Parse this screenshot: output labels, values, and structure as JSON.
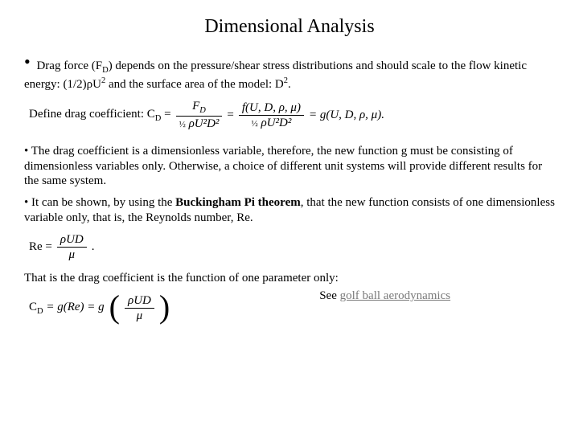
{
  "title": "Dimensional Analysis",
  "bullet1_a": "Drag force (F",
  "bullet1_sub": "D",
  "bullet1_b": ") depends on the pressure/shear stress distributions and should scale to the flow kinetic energy: (1/2)ρU",
  "bullet1_sup1": "2",
  "bullet1_c": " and the surface area of the model: D",
  "bullet1_sup2": "2",
  "bullet1_d": ".",
  "eq1_def_pre": "Define drag coefficient: C",
  "eq1_def_sub": "D",
  "equals": " = ",
  "eq1_num1": "F",
  "eq1_num1_sub": "D",
  "eq1_den_half": "½",
  "eq1_den_rest": " ρU²D²",
  "eq1_num2_f": "f(U, D, ρ, μ)",
  "eq1_num3_g": " = g(U, D, ρ, μ).",
  "bullet2": "The drag coefficient is a dimensionless variable, therefore, the new function g must be consisting of dimensionless variables only.  Otherwise, a choice of different unit systems will provide different results for the same system.",
  "bullet3_a": "It can be shown, by using the ",
  "bullet3_bold": "Buckingham Pi theorem",
  "bullet3_b": ", that the new function consists of one dimensionless variable only, that is, the Reynolds number, Re.",
  "re_lhs": "Re = ",
  "re_num": "ρUD",
  "re_den": "μ",
  "re_dot": ".",
  "that_is": "That is the drag coefficient is the function of one parameter only:",
  "cd_lhs_pre": "C",
  "cd_lhs_sub": "D",
  "cd_rhs1": " = g(Re) = g",
  "cd_frac_num": "ρUD",
  "cd_frac_den": "μ",
  "see_pre": "See ",
  "see_link": "golf ball aerodynamics"
}
